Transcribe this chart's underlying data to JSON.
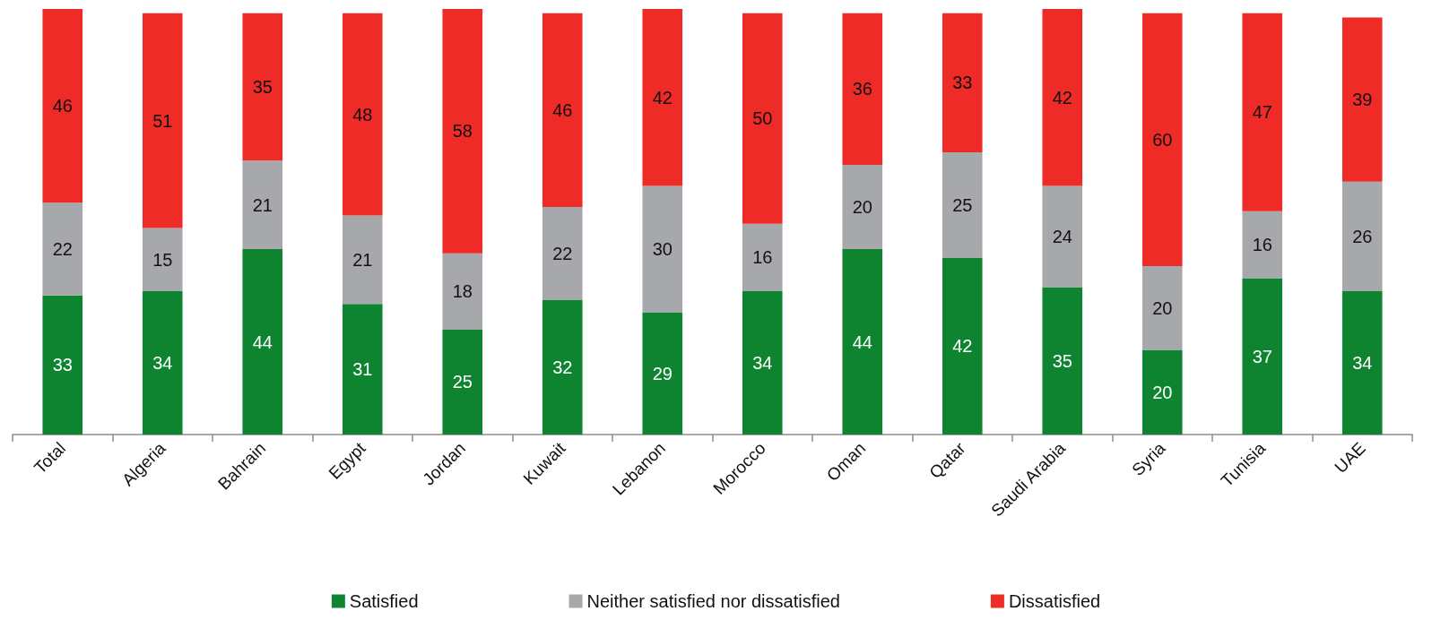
{
  "chart_data": {
    "type": "bar",
    "stacked": true,
    "categories": [
      "Total",
      "Algeria",
      "Bahrain",
      "Egypt",
      "Jordan",
      "Kuwait",
      "Lebanon",
      "Morocco",
      "Oman",
      "Qatar",
      "Saudi Arabia",
      "Syria",
      "Tunisia",
      "UAE"
    ],
    "series": [
      {
        "name": "Satisfied",
        "color": "#0e8430",
        "values": [
          33,
          34,
          44,
          31,
          25,
          32,
          29,
          34,
          44,
          42,
          35,
          20,
          37,
          34
        ]
      },
      {
        "name": "Neither satisfied nor dissatisfied",
        "color": "#a7a8ab",
        "values": [
          22,
          15,
          21,
          21,
          18,
          22,
          30,
          16,
          20,
          25,
          24,
          20,
          16,
          26
        ]
      },
      {
        "name": "Dissatisfied",
        "color": "#ee2b27",
        "values": [
          46,
          51,
          35,
          48,
          58,
          46,
          42,
          50,
          36,
          33,
          42,
          60,
          47,
          39
        ]
      }
    ],
    "data_labels": true,
    "legend": "bottom",
    "grid": false,
    "tick_labels": "x"
  }
}
